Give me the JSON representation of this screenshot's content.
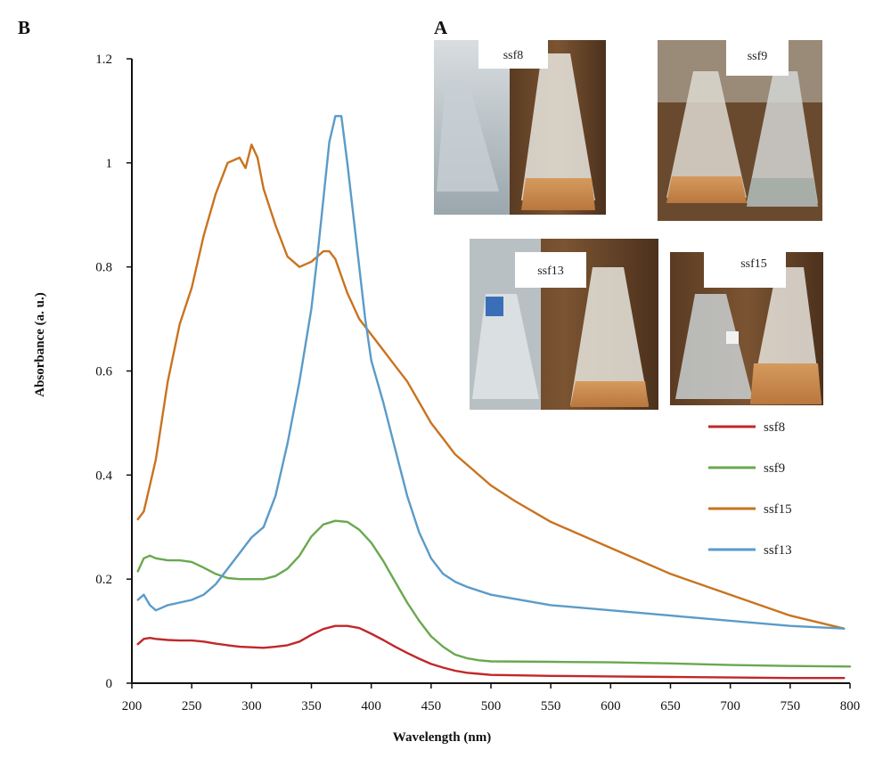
{
  "panel_labels": {
    "chart": "B",
    "photos": "A"
  },
  "photos": [
    {
      "label": "ssf8"
    },
    {
      "label": "ssf9"
    },
    {
      "label": "ssf13"
    },
    {
      "label": "ssf15"
    }
  ],
  "colors": {
    "ssf8": "#c0282a",
    "ssf9": "#6aa84f",
    "ssf15": "#c9731f",
    "ssf13": "#5b9bc9"
  },
  "chart_data": {
    "type": "line",
    "title": "",
    "xlabel": "Wavelength (nm)",
    "ylabel": "Absorbance (a. u.)",
    "xlim": [
      200,
      800
    ],
    "ylim": [
      0,
      1.2
    ],
    "xticks": [
      "200",
      "250",
      "300",
      "350",
      "400",
      "450",
      "500",
      "550",
      "600",
      "650",
      "700",
      "750",
      "800"
    ],
    "yticks": [
      "0",
      "0.2",
      "0.4",
      "0.6",
      "0.8",
      "1",
      "1.2"
    ],
    "legend_position": "right",
    "series": [
      {
        "name": "ssf8",
        "x": [
          205,
          210,
          215,
          220,
          230,
          240,
          250,
          260,
          270,
          280,
          290,
          300,
          310,
          320,
          330,
          340,
          350,
          360,
          370,
          380,
          390,
          400,
          410,
          420,
          430,
          440,
          450,
          460,
          470,
          480,
          490,
          500,
          550,
          600,
          650,
          700,
          750,
          795
        ],
        "y": [
          0.075,
          0.085,
          0.087,
          0.085,
          0.083,
          0.082,
          0.082,
          0.08,
          0.076,
          0.073,
          0.07,
          0.069,
          0.068,
          0.07,
          0.073,
          0.08,
          0.093,
          0.104,
          0.11,
          0.11,
          0.106,
          0.095,
          0.083,
          0.07,
          0.058,
          0.047,
          0.037,
          0.03,
          0.024,
          0.02,
          0.018,
          0.016,
          0.014,
          0.013,
          0.012,
          0.011,
          0.01,
          0.01
        ]
      },
      {
        "name": "ssf9",
        "x": [
          205,
          210,
          215,
          220,
          230,
          240,
          250,
          260,
          270,
          280,
          290,
          300,
          310,
          320,
          330,
          340,
          350,
          360,
          370,
          380,
          390,
          400,
          410,
          420,
          430,
          440,
          450,
          460,
          470,
          480,
          490,
          500,
          550,
          600,
          650,
          700,
          750,
          800
        ],
        "y": [
          0.215,
          0.24,
          0.245,
          0.24,
          0.236,
          0.236,
          0.233,
          0.222,
          0.21,
          0.202,
          0.2,
          0.2,
          0.2,
          0.206,
          0.22,
          0.245,
          0.282,
          0.305,
          0.312,
          0.31,
          0.295,
          0.27,
          0.235,
          0.195,
          0.155,
          0.12,
          0.09,
          0.07,
          0.055,
          0.048,
          0.044,
          0.042,
          0.041,
          0.04,
          0.038,
          0.035,
          0.033,
          0.032
        ]
      },
      {
        "name": "ssf15",
        "x": [
          205,
          210,
          215,
          220,
          230,
          240,
          250,
          260,
          270,
          280,
          290,
          295,
          300,
          305,
          310,
          320,
          330,
          340,
          350,
          360,
          365,
          370,
          380,
          390,
          400,
          410,
          420,
          430,
          440,
          450,
          460,
          470,
          480,
          500,
          520,
          550,
          600,
          650,
          700,
          750,
          795
        ],
        "y": [
          0.315,
          0.33,
          0.38,
          0.43,
          0.58,
          0.69,
          0.76,
          0.86,
          0.94,
          1.0,
          1.01,
          0.99,
          1.035,
          1.01,
          0.95,
          0.88,
          0.82,
          0.8,
          0.81,
          0.83,
          0.83,
          0.815,
          0.75,
          0.7,
          0.67,
          0.64,
          0.61,
          0.58,
          0.54,
          0.5,
          0.47,
          0.44,
          0.42,
          0.38,
          0.35,
          0.31,
          0.26,
          0.21,
          0.17,
          0.13,
          0.105
        ]
      },
      {
        "name": "ssf13",
        "x": [
          205,
          210,
          215,
          220,
          225,
          230,
          240,
          250,
          260,
          270,
          280,
          290,
          300,
          310,
          320,
          330,
          340,
          350,
          355,
          360,
          365,
          370,
          375,
          380,
          385,
          390,
          395,
          400,
          410,
          420,
          430,
          440,
          450,
          460,
          470,
          480,
          500,
          550,
          600,
          650,
          700,
          750,
          795
        ],
        "y": [
          0.16,
          0.17,
          0.15,
          0.14,
          0.145,
          0.15,
          0.155,
          0.16,
          0.17,
          0.19,
          0.22,
          0.25,
          0.28,
          0.3,
          0.36,
          0.46,
          0.58,
          0.72,
          0.82,
          0.93,
          1.04,
          1.09,
          1.09,
          1.0,
          0.9,
          0.8,
          0.7,
          0.62,
          0.54,
          0.45,
          0.36,
          0.29,
          0.24,
          0.21,
          0.195,
          0.185,
          0.17,
          0.15,
          0.14,
          0.13,
          0.12,
          0.11,
          0.105
        ]
      }
    ]
  }
}
